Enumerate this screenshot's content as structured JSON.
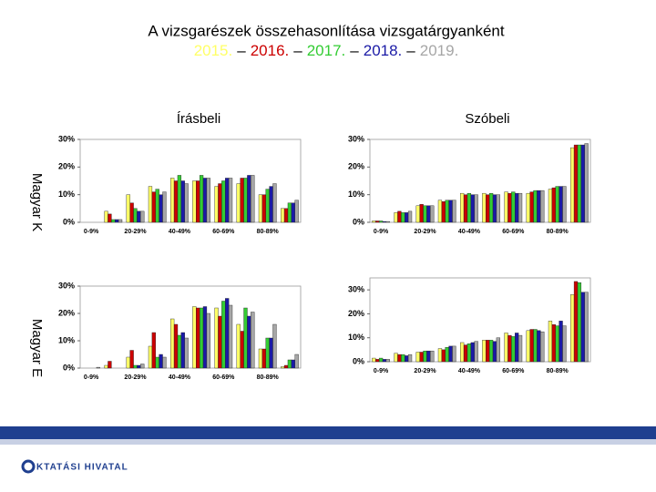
{
  "header": {
    "title": "A vizsgarészek összehasonlítása vizsgatárgyanként",
    "separator": "–"
  },
  "column_titles": [
    "Írásbeli",
    "Szóbeli"
  ],
  "row_titles": [
    "Magyar K",
    "Magyar E"
  ],
  "footer": {
    "logo_text": "KTATÁSI HIVATAL"
  },
  "chart_data": [
    {
      "type": "bar",
      "categories": [
        "0-9%",
        null,
        "20-29%",
        null,
        "40-49%",
        null,
        "60-69%",
        null,
        "80-89%",
        null
      ],
      "ylim": [
        0,
        30
      ],
      "yticks": [
        {
          "value": 0,
          "label": "0%"
        },
        {
          "value": 10,
          "label": "10%"
        },
        {
          "value": 20,
          "label": "20%"
        },
        {
          "value": 30,
          "label": "30%"
        }
      ],
      "grid": false,
      "series": [
        {
          "name": "2015.",
          "color": "#ffff66",
          "values": [
            0,
            4,
            10,
            13,
            16,
            15,
            13,
            14,
            10,
            5
          ]
        },
        {
          "name": "2016.",
          "color": "#cc0000",
          "values": [
            0,
            3,
            7,
            11,
            15,
            15,
            14,
            16,
            10,
            5
          ]
        },
        {
          "name": "2017.",
          "color": "#33cc33",
          "values": [
            0,
            1,
            5,
            12,
            17,
            17,
            15,
            16,
            12,
            7
          ]
        },
        {
          "name": "2018.",
          "color": "#1a1aa6",
          "values": [
            0,
            1,
            4,
            10,
            15,
            16,
            16,
            17,
            13,
            7
          ]
        },
        {
          "name": "2019.",
          "color": "#a6a6a6",
          "values": [
            0,
            1,
            4,
            11,
            14,
            16,
            16,
            17,
            14,
            8
          ]
        }
      ]
    },
    {
      "type": "bar",
      "categories": [
        "0-9%",
        null,
        "20-29%",
        null,
        "40-49%",
        null,
        "60-69%",
        null,
        "80-89%",
        null
      ],
      "ylim": [
        0,
        30
      ],
      "yticks": [
        {
          "value": 0,
          "label": "0%"
        },
        {
          "value": 10,
          "label": "10%"
        },
        {
          "value": 20,
          "label": "20%"
        },
        {
          "value": 30,
          "label": "30%"
        }
      ],
      "grid": false,
      "series": [
        {
          "name": "2015.",
          "color": "#ffff66",
          "values": [
            0.5,
            3.5,
            6,
            8,
            10.5,
            10.5,
            11,
            10.5,
            12,
            27
          ]
        },
        {
          "name": "2016.",
          "color": "#cc0000",
          "values": [
            0.5,
            4,
            6.5,
            7.5,
            10,
            10,
            10.5,
            11,
            12.5,
            28
          ]
        },
        {
          "name": "2017.",
          "color": "#33cc33",
          "values": [
            0.5,
            3.5,
            6,
            8,
            10.5,
            10.5,
            11,
            11.5,
            13,
            28
          ]
        },
        {
          "name": "2018.",
          "color": "#1a1aa6",
          "values": [
            0.3,
            3.5,
            6,
            8,
            10,
            10,
            10.5,
            11.5,
            13,
            28
          ]
        },
        {
          "name": "2019.",
          "color": "#a6a6a6",
          "values": [
            0.3,
            4,
            6,
            8,
            10,
            10,
            10.5,
            11.5,
            13,
            28.5
          ]
        }
      ]
    },
    {
      "type": "bar",
      "categories": [
        "0-9%",
        null,
        "20-29%",
        null,
        "40-49%",
        null,
        "60-69%",
        null,
        "80-89%",
        null
      ],
      "ylim": [
        0,
        30
      ],
      "yticks": [
        {
          "value": 0,
          "label": "0%"
        },
        {
          "value": 10,
          "label": "10%"
        },
        {
          "value": 20,
          "label": "20%"
        },
        {
          "value": 30,
          "label": "30%"
        }
      ],
      "grid": false,
      "series": [
        {
          "name": "2015.",
          "color": "#ffff66",
          "values": [
            0,
            1,
            4,
            8,
            18,
            22.5,
            22,
            16,
            7,
            0.5
          ]
        },
        {
          "name": "2016.",
          "color": "#cc0000",
          "values": [
            0,
            2.5,
            6.5,
            13,
            16,
            22,
            19,
            13.5,
            7,
            1
          ]
        },
        {
          "name": "2017.",
          "color": "#33cc33",
          "values": [
            0,
            0,
            1,
            4,
            12,
            22,
            24.5,
            22,
            11,
            3
          ]
        },
        {
          "name": "2018.",
          "color": "#1a1aa6",
          "values": [
            0,
            0,
            1,
            5,
            13,
            22.5,
            25.5,
            19,
            11,
            3
          ]
        },
        {
          "name": "2019.",
          "color": "#a6a6a6",
          "values": [
            0.3,
            0,
            1.5,
            4,
            11,
            20,
            23,
            20.5,
            16,
            5
          ]
        }
      ]
    },
    {
      "type": "bar",
      "categories": [
        "0-9%",
        null,
        "20-29%",
        null,
        "40-49%",
        null,
        "60-69%",
        null,
        "80-89%",
        null
      ],
      "ylim": [
        0,
        35
      ],
      "yticks": [
        {
          "value": 0,
          "label": "0%"
        },
        {
          "value": 10,
          "label": "10%"
        },
        {
          "value": 20,
          "label": "20%"
        },
        {
          "value": 30,
          "label": "30%"
        }
      ],
      "grid": false,
      "series": [
        {
          "name": "2015.",
          "color": "#ffff66",
          "values": [
            1.5,
            3.5,
            4,
            5.5,
            8,
            9,
            12,
            13,
            17,
            28
          ]
        },
        {
          "name": "2016.",
          "color": "#cc0000",
          "values": [
            1,
            3,
            4,
            5,
            7,
            9,
            11,
            13.5,
            15.5,
            33.5
          ]
        },
        {
          "name": "2017.",
          "color": "#33cc33",
          "values": [
            1.5,
            3,
            4.5,
            6,
            7.5,
            9,
            10.5,
            13.5,
            15,
            33
          ]
        },
        {
          "name": "2018.",
          "color": "#1a1aa6",
          "values": [
            1,
            2.5,
            4.5,
            6.5,
            8,
            8.5,
            12,
            13,
            17,
            29
          ]
        },
        {
          "name": "2019.",
          "color": "#a6a6a6",
          "values": [
            1,
            3,
            4.5,
            6.5,
            8.5,
            10,
            11,
            12.5,
            15,
            29
          ]
        }
      ]
    }
  ]
}
